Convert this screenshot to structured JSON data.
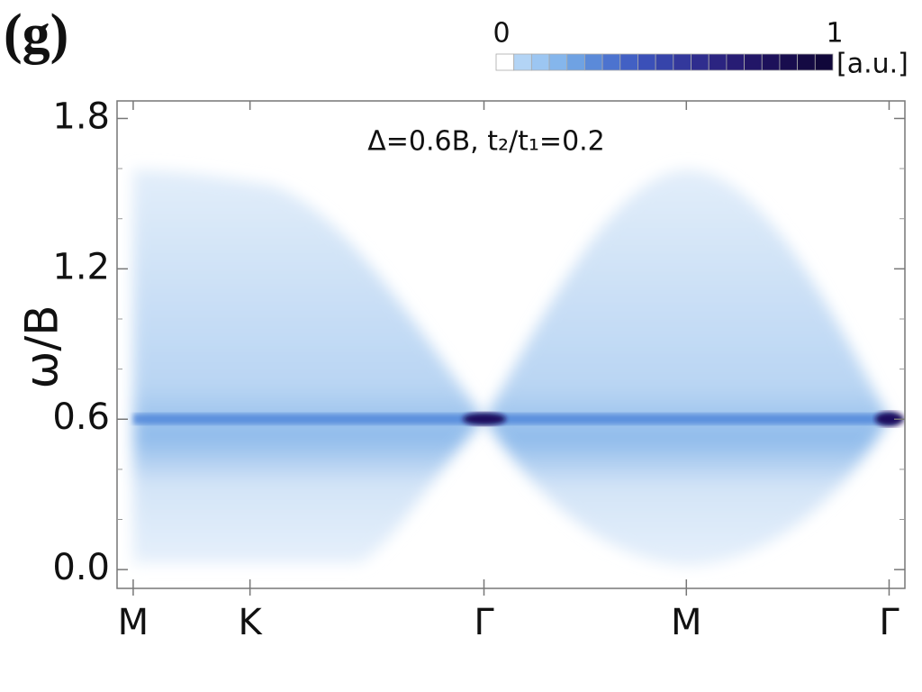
{
  "chart_data": {
    "type": "spectrum",
    "panel_label": "(g)",
    "annotation": "Δ=0.6B, t₂/t₁=0.2",
    "y_label": "ω/B",
    "xlim": [
      -0.046,
      2.2
    ],
    "xticks": [
      {
        "value": 0,
        "label": "M"
      },
      {
        "value": 0.333,
        "label": "K"
      },
      {
        "value": 1,
        "label": "Γ"
      },
      {
        "value": 1.577,
        "label": "M"
      },
      {
        "value": 2.155,
        "label": "Γ"
      }
    ],
    "ylim": [
      -0.075,
      1.87
    ],
    "yticks": [
      {
        "value": 0,
        "label": "0.0"
      },
      {
        "value": 0.6,
        "label": "0.6"
      },
      {
        "value": 1.2,
        "label": "1.2"
      },
      {
        "value": 1.8,
        "label": "1.8"
      }
    ],
    "yminor_ticks": [
      0.2,
      0.4,
      0.8,
      1.0,
      1.4,
      1.6
    ],
    "colorbar": {
      "min": 0,
      "max": 1,
      "unit": "[a.u.]",
      "colors": [
        "#ffffff",
        "#b3d4f5",
        "#9cc6f2",
        "#85b6ec",
        "#6fa2e3",
        "#5b8ad9",
        "#4c73cf",
        "#4260c4",
        "#3b50b8",
        "#3644aa",
        "#33389c",
        "#2f2d8e",
        "#2b2481",
        "#271c74",
        "#221667",
        "#1d115a",
        "#180d4e",
        "#140a43",
        "#10073a"
      ]
    }
  }
}
